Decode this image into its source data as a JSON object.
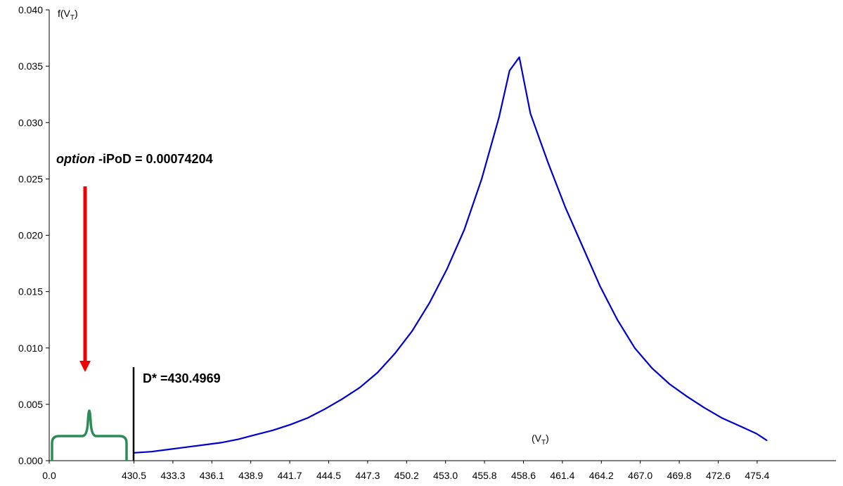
{
  "chart_data": {
    "type": "line",
    "title": "",
    "ylabel": {
      "main": "f(V",
      "sub": "T",
      "close": ")"
    },
    "xlabel": {
      "main": "(V",
      "sub": "T",
      "close": ")"
    },
    "ylim": [
      0,
      0.04
    ],
    "yticks": [
      "0.000",
      "0.005",
      "0.010",
      "0.015",
      "0.020",
      "0.025",
      "0.030",
      "0.035",
      "0.040"
    ],
    "xticks": [
      "0.0",
      "430.5",
      "433.3",
      "436.1",
      "438.9",
      "441.7",
      "444.5",
      "447.3",
      "450.2",
      "453.0",
      "455.8",
      "458.6",
      "461.4",
      "464.2",
      "467.0",
      "469.8",
      "472.6",
      "475.4"
    ],
    "series": [
      {
        "color": "#0000cc",
        "x": [
          430.5,
          431.75,
          433.0,
          434.25,
          435.5,
          436.75,
          438.0,
          439.25,
          440.5,
          441.75,
          443.0,
          444.25,
          445.5,
          446.75,
          448.0,
          449.25,
          450.5,
          451.75,
          453.0,
          454.25,
          455.5,
          456.75,
          457.5,
          458.2,
          459.0,
          460.25,
          461.5,
          462.75,
          464.0,
          465.25,
          466.5,
          467.75,
          469.0,
          470.25,
          471.5,
          472.75,
          474.0,
          475.25,
          476.0
        ],
        "y": [
          0.0007,
          0.0008,
          0.001,
          0.0012,
          0.0014,
          0.0016,
          0.0019,
          0.0023,
          0.0027,
          0.0032,
          0.0038,
          0.0046,
          0.0055,
          0.0065,
          0.0078,
          0.0095,
          0.0115,
          0.014,
          0.017,
          0.0205,
          0.025,
          0.0305,
          0.0346,
          0.0358,
          0.0308,
          0.0265,
          0.0225,
          0.019,
          0.0155,
          0.0125,
          0.01,
          0.0082,
          0.0068,
          0.0057,
          0.0047,
          0.0038,
          0.0031,
          0.0024,
          0.0018
        ]
      }
    ],
    "annotations": {
      "option_label_italic": "option",
      "option_label_rest": " -iPoD = 0.00074204",
      "dstar_label": "D* =430.4969",
      "arrow_color": "#ee0000",
      "brace_color": "#2e8b57",
      "dstar_line_color": "#000000"
    }
  }
}
